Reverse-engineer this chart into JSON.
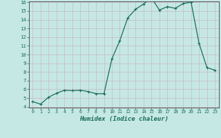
{
  "x": [
    0,
    1,
    2,
    3,
    4,
    5,
    6,
    7,
    8,
    9,
    10,
    11,
    12,
    13,
    14,
    15,
    16,
    17,
    18,
    19,
    20,
    21,
    22,
    23
  ],
  "y": [
    4.6,
    4.3,
    5.1,
    5.55,
    5.9,
    5.85,
    5.9,
    5.75,
    5.5,
    5.5,
    9.5,
    11.6,
    14.2,
    15.2,
    15.8,
    16.5,
    15.1,
    15.5,
    15.3,
    15.85,
    16.0,
    11.3,
    8.5,
    8.2
  ],
  "xlabel": "Humidex (Indice chaleur)",
  "xlim": [
    -0.5,
    23.5
  ],
  "ylim": [
    4,
    16
  ],
  "yticks": [
    4,
    5,
    6,
    7,
    8,
    9,
    10,
    11,
    12,
    13,
    14,
    15,
    16
  ],
  "xticks": [
    0,
    1,
    2,
    3,
    4,
    5,
    6,
    7,
    8,
    9,
    10,
    11,
    12,
    13,
    14,
    15,
    16,
    17,
    18,
    19,
    20,
    21,
    22,
    23
  ],
  "line_color": "#1a6b5a",
  "marker_color": "#1a6b5a",
  "bg_color": "#c5e8e5",
  "grid_color": "#b8d8d5",
  "border_color": "#555555",
  "xlabel_color": "#1a6b5a",
  "tick_color": "#1a6b5a"
}
